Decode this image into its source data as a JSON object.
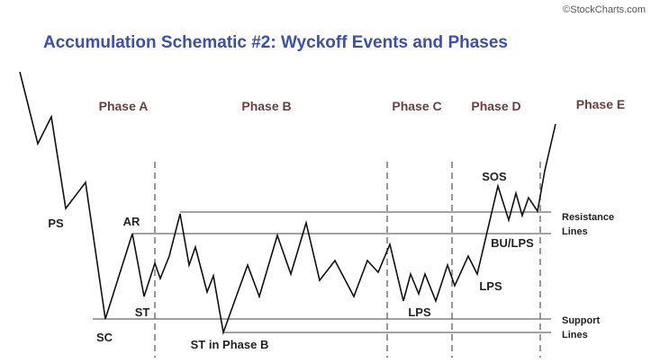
{
  "title": "Accumulation Schematic #2: Wyckoff Events and Phases",
  "watermark": "©StockCharts.com",
  "phases": [
    "Phase A",
    "Phase B",
    "Phase C",
    "Phase D",
    "Phase E"
  ],
  "events": [
    "PS",
    "AR",
    "SC",
    "ST",
    "ST in Phase B",
    "LPS",
    "LPS",
    "SOS",
    "BU/LPS"
  ],
  "line_labels": {
    "resistance": [
      "Resistance",
      "Lines"
    ],
    "support": [
      "Support",
      "Lines"
    ]
  }
}
